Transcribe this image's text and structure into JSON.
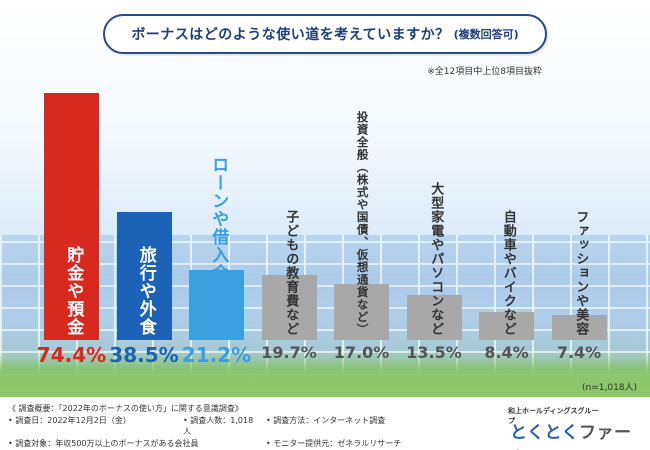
{
  "title": "ボーナスはどのような使い道を考えていますか？",
  "title_sub": "(複数回答可)",
  "note": "※全12項目中上位8項目抜粋",
  "sample_size": "(n=1,018人)",
  "chart_data": {
    "type": "bar",
    "title": "ボーナスはどのような使い道を考えていますか？(複数回答可)",
    "categories": [
      "貯金や預金",
      "旅行や外食",
      "ローンや借入金の返済",
      "子どもの教育費など",
      "投資全般（株式や国債、仮想通貨など）",
      "大型家電やパソコンなど",
      "自動車やバイクなど",
      "ファッションや美容"
    ],
    "values": [
      74.4,
      38.5,
      21.2,
      19.7,
      17.0,
      13.5,
      8.4,
      7.4
    ],
    "value_labels": [
      "74.4%",
      "38.5%",
      "21.2%",
      "19.7%",
      "17.0%",
      "13.5%",
      "8.4%",
      "7.4%"
    ],
    "bar_colors": [
      "#d9281e",
      "#1c63b8",
      "#3aa0e0",
      "#a8a8a8",
      "#a8a8a8",
      "#a8a8a8",
      "#a8a8a8",
      "#a8a8a8"
    ],
    "label_colors": [
      "#ffffff",
      "#ffffff",
      "#3aa0e0",
      "#333333",
      "#333333",
      "#333333",
      "#333333",
      "#333333"
    ],
    "pct_colors": [
      "#d9281e",
      "#1c63b8",
      "#3aa0e0",
      "#555555",
      "#555555",
      "#555555",
      "#555555",
      "#555555"
    ],
    "ylim": [
      0,
      74.4
    ],
    "xlabel": "",
    "ylabel": ""
  },
  "survey": {
    "heading": "《 調査概要：「2022年のボーナスの使い方」に関する意識調査》",
    "date": "• 調査日：2022年12月2日（金）",
    "people": "• 調査人数：1,018人",
    "method": "• 調査方法：インターネット調査",
    "target": "• 調査対象：年収500万以上のボーナスがある会社員",
    "monitor": "• モニター提供元：ゼネラルリサーチ"
  },
  "logo": {
    "group": "和上ホールディングスグループ",
    "brand_a": "とくとく",
    "brand_b": "ファーム",
    "colors": {
      "brand_a": "#2b5fb5",
      "brand_b": "#555555"
    }
  }
}
